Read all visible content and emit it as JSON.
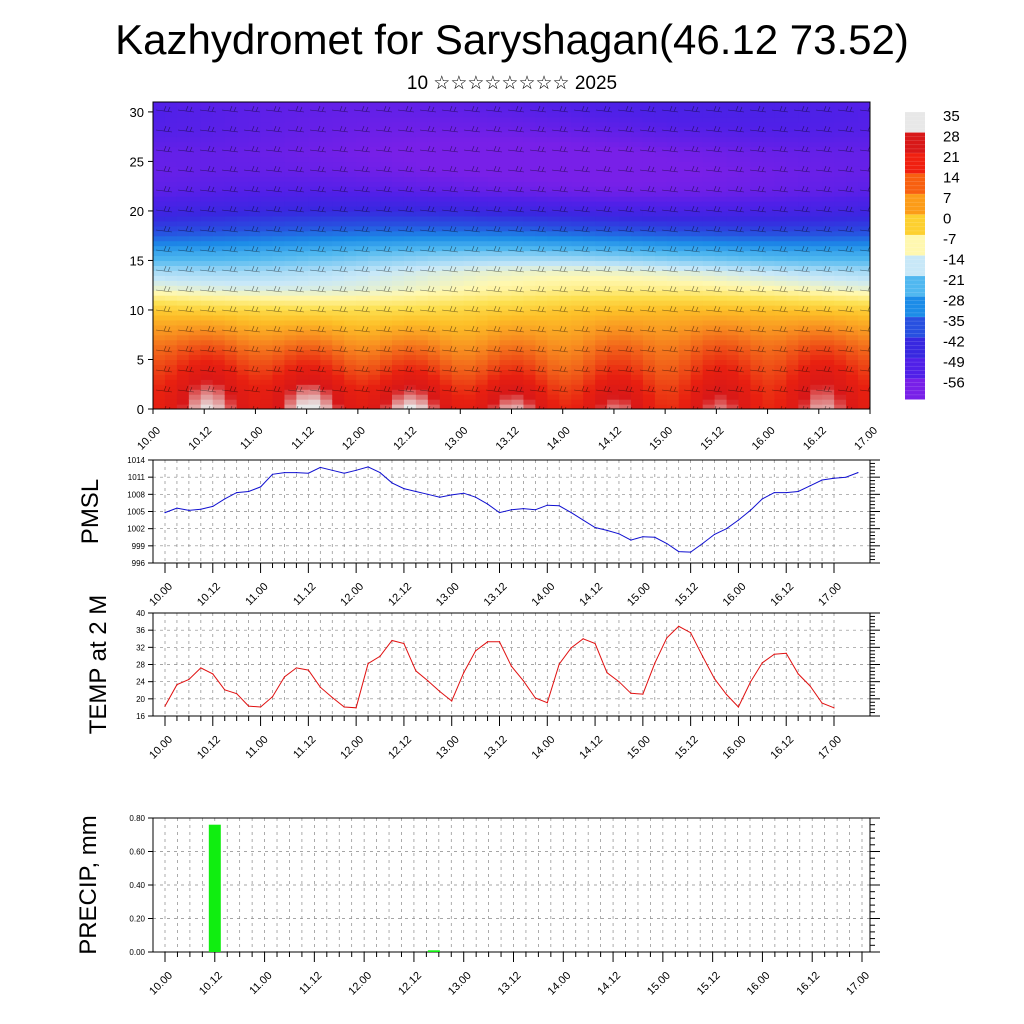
{
  "title": "Kazhydromet for Saryshagan(46.12 73.52)",
  "subtitle": "10 ☆☆☆☆☆☆☆☆ 2025",
  "chart_data": [
    {
      "type": "heatmap",
      "variable": "temperature",
      "ylim": [
        0,
        31
      ],
      "yticks": [
        0,
        5,
        10,
        15,
        20,
        25,
        30
      ],
      "xticks": [
        "10.00",
        "10.12",
        "11.00",
        "11.12",
        "12.00",
        "12.12",
        "13.00",
        "13.12",
        "14.00",
        "14.12",
        "15.00",
        "15.12",
        "16.00",
        "16.12",
        "17.00"
      ],
      "levels": [
        0,
        2,
        4,
        6,
        8,
        10,
        12,
        14,
        16,
        18,
        20,
        22,
        24,
        26,
        28,
        30
      ],
      "temperature_profile": [
        28,
        24,
        18,
        12,
        5,
        -2,
        -10,
        -14,
        -22,
        -34,
        -44,
        -52,
        -55,
        -55,
        -52,
        -50
      ],
      "wind_barbs": true,
      "colorbar_labels": [
        "35",
        "28",
        "21",
        "14",
        "7",
        "0",
        "-7",
        "-14",
        "-21",
        "-28",
        "-35",
        "-42",
        "-49",
        "-56"
      ],
      "colorbar_colors": [
        "#e8e8e8",
        "#d81818",
        "#f02010",
        "#f86010",
        "#fc9c18",
        "#fdd030",
        "#fff8b0",
        "#c8e8f8",
        "#50b8f0",
        "#1c8ce8",
        "#2850e0",
        "#3828e0",
        "#5020e8",
        "#7820e8"
      ]
    },
    {
      "type": "line",
      "ylabel": "PMSL",
      "ylim": [
        996,
        1014
      ],
      "yticks": [
        996,
        999,
        1002,
        1005,
        1008,
        1011,
        1014
      ],
      "color": "#1010d0",
      "xticks": [
        "10.00",
        "10.12",
        "11.00",
        "11.12",
        "12.00",
        "12.12",
        "13.00",
        "13.12",
        "14.00",
        "14.12",
        "15.00",
        "15.12",
        "16.00",
        "16.12",
        "17.00"
      ],
      "values": [
        1004.8,
        1005.6,
        1005.2,
        1005.4,
        1005.9,
        1007.2,
        1008.3,
        1008.5,
        1009.3,
        1011.5,
        1011.8,
        1011.8,
        1011.7,
        1012.7,
        1012.2,
        1011.7,
        1012.2,
        1012.8,
        1011.8,
        1010.0,
        1009.0,
        1008.5,
        1008.0,
        1007.5,
        1007.9,
        1008.2,
        1007.5,
        1006.3,
        1004.8,
        1005.3,
        1005.5,
        1005.3,
        1006.1,
        1006.0,
        1004.8,
        1003.5,
        1002.2,
        1001.7,
        1001.1,
        1000.0,
        1000.6,
        1000.5,
        999.4,
        998.0,
        997.9,
        999.4,
        1001.0,
        1002.0,
        1003.5,
        1005.2,
        1007.2,
        1008.3,
        1008.3,
        1008.5,
        1009.5,
        1010.5,
        1010.8,
        1011.0,
        1011.8
      ]
    },
    {
      "type": "line",
      "ylabel": "TEMP at 2 M",
      "ylim": [
        16,
        40
      ],
      "yticks": [
        16,
        20,
        24,
        28,
        32,
        36,
        40
      ],
      "color": "#e01010",
      "xticks": [
        "10.00",
        "10.12",
        "11.00",
        "11.12",
        "12.00",
        "12.12",
        "13.00",
        "13.12",
        "14.00",
        "14.12",
        "15.00",
        "15.12",
        "16.00",
        "16.12",
        "17.00"
      ],
      "values": [
        18.3,
        23.3,
        24.5,
        27.2,
        25.8,
        22.1,
        21.2,
        18.3,
        18.1,
        20.5,
        25.1,
        27.2,
        26.7,
        22.7,
        20.3,
        18.1,
        17.9,
        28.2,
        29.9,
        33.6,
        32.9,
        26.5,
        24.2,
        21.7,
        19.5,
        26.1,
        31.2,
        33.3,
        33.3,
        27.6,
        24.2,
        20.2,
        19.1,
        28.1,
        31.9,
        34.0,
        32.9,
        26.1,
        24.0,
        21.3,
        21.1,
        28.3,
        34.2,
        36.9,
        35.4,
        29.9,
        24.7,
        21.0,
        18.1,
        23.9,
        28.4,
        30.4,
        30.6,
        25.8,
        23.0,
        19.0,
        17.9
      ]
    },
    {
      "type": "bar",
      "ylabel": "PRECIP, mm",
      "ylim": [
        0,
        0.8
      ],
      "yticks": [
        "0.00",
        "0.20",
        "0.40",
        "0.60",
        "0.80"
      ],
      "color": "#10ee10",
      "xticks": [
        "10.00",
        "10.12",
        "11.00",
        "11.12",
        "12.00",
        "12.12",
        "13.00",
        "13.12",
        "14.00",
        "14.12",
        "15.00",
        "15.12",
        "16.00",
        "16.12",
        "17.00"
      ],
      "bars": [
        {
          "t": 0.5,
          "value": 0.76
        },
        {
          "t": 2.7,
          "value": 0.01
        }
      ]
    }
  ]
}
